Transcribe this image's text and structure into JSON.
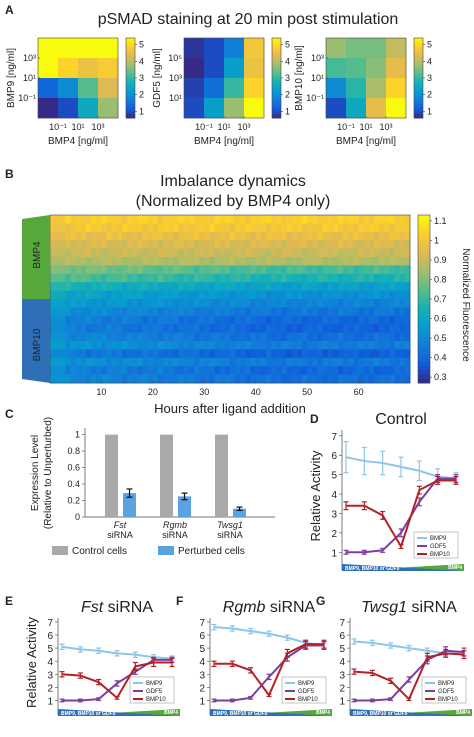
{
  "chart_data": [
    {
      "panel": "A",
      "type": "heatmap",
      "title": "pSMAD staining at 20 min post stimulation",
      "colorbar_ticks": [
        1,
        2,
        3,
        4,
        5
      ],
      "subplots": [
        {
          "ylabel": "BMP9 [ng/ml]",
          "xlabel": "BMP4 [ng/ml]",
          "xticks": [
            "10⁻¹",
            "10¹",
            "10³"
          ],
          "yticks": [
            "10³",
            "10¹",
            "10⁻¹"
          ],
          "values": [
            [
              5,
              5,
              5,
              5
            ],
            [
              5,
              4.6,
              4.3,
              4.5
            ],
            [
              1.6,
              2.1,
              3.2,
              4.1
            ],
            [
              1.0,
              1.3,
              2.6,
              3.6
            ]
          ]
        },
        {
          "ylabel": "GDF5 [ng/ml]",
          "xlabel": "BMP4 [ng/ml]",
          "xticks": [
            "10⁻¹",
            "10¹",
            "10³"
          ],
          "yticks": [
            "10⁵",
            "10³",
            "10¹"
          ],
          "values": [
            [
              1.1,
              1.3,
              1.9,
              4.4
            ],
            [
              1.0,
              1.3,
              2.4,
              4.3
            ],
            [
              1.2,
              1.7,
              3.0,
              4.6
            ],
            [
              1.3,
              2.4,
              3.6,
              5.0
            ]
          ]
        },
        {
          "ylabel": "BMP10 [ng/ml]",
          "xlabel": "BMP4 [ng/ml]",
          "xticks": [
            "10⁻¹",
            "10¹",
            "10³"
          ],
          "yticks": [
            "10³",
            "10¹",
            "10⁻¹"
          ],
          "values": [
            [
              3.6,
              3.4,
              3.4,
              3.9
            ],
            [
              3.1,
              3.2,
              3.5,
              4.2
            ],
            [
              2.1,
              2.9,
              3.7,
              4.6
            ],
            [
              1.3,
              2.6,
              4.2,
              5.0
            ]
          ]
        }
      ]
    },
    {
      "panel": "B",
      "type": "heatmap",
      "title_line1": "Imbalance dynamics",
      "title_line2": "(Normalized by BMP4 only)",
      "xlabel": "Hours after ligand addition",
      "xticks": [
        10,
        20,
        30,
        40,
        50,
        60
      ],
      "xlim": [
        0,
        70
      ],
      "side_label_top": "BMP4",
      "side_label_bottom": "BMP10",
      "colorbar_label": "Normalized Fluorescence",
      "colorbar_ticks": [
        1.1,
        1,
        0.9,
        0.8,
        0.7,
        0.6,
        0.5,
        0.4,
        0.3
      ],
      "colorbar_range": [
        0.27,
        1.13
      ],
      "row_levels": [
        1.03,
        1.01,
        0.97,
        0.93,
        0.9,
        0.86,
        0.8,
        0.74,
        0.66,
        0.6,
        0.56,
        0.52,
        0.48,
        0.47,
        0.5,
        0.54,
        0.46,
        0.53,
        0.48,
        0.5
      ]
    },
    {
      "panel": "C",
      "type": "bar",
      "ylabel_line1": "Expression Level",
      "ylabel_line2": "(Relative to Unperturbed)",
      "categories": [
        {
          "gene": "Fst",
          "suffix": "siRNA"
        },
        {
          "gene": "Rgmb",
          "suffix": "siRNA"
        },
        {
          "gene": "Twsg1",
          "suffix": "siRNA"
        }
      ],
      "series": [
        {
          "name": "Control cells",
          "color": "#a9a9a9",
          "values": [
            1,
            1,
            1
          ]
        },
        {
          "name": "Perturbed cells",
          "color": "#5aa2e0",
          "values": [
            0.29,
            0.25,
            0.1
          ],
          "errors": [
            0.05,
            0.04,
            0.02
          ]
        }
      ],
      "yticks": [
        0,
        0.2,
        0.4,
        0.6,
        0.8,
        1
      ],
      "ylim": [
        0,
        1.08
      ]
    },
    {
      "type": "line",
      "panels": [
        {
          "panel": "D",
          "title": "Control",
          "title_italic": "",
          "ylabel": "Relative Activity",
          "series": [
            {
              "name": "BMP9",
              "color": "#8ec5ea",
              "values": [
                5.9,
                5.7,
                5.6,
                5.4,
                5.2,
                4.9,
                4.8
              ],
              "errors": [
                0.8,
                0.7,
                0.6,
                0.5,
                0.5,
                0.4,
                0.3
              ]
            },
            {
              "name": "GDF5",
              "color": "#7b3f9e",
              "values": [
                1.0,
                1.0,
                1.1,
                2.0,
                3.6,
                4.8,
                4.8
              ],
              "errors": [
                0.1,
                0.1,
                0.1,
                0.2,
                0.2,
                0.2,
                0.2
              ]
            },
            {
              "name": "BMP10",
              "color": "#b52025",
              "values": [
                3.4,
                3.4,
                2.9,
                1.3,
                4.2,
                4.7,
                4.7
              ],
              "errors": [
                0.2,
                0.2,
                0.2,
                0.1,
                0.2,
                0.2,
                0.2
              ]
            }
          ]
        },
        {
          "panel": "E",
          "title": "siRNA",
          "title_italic": "Fst",
          "ylabel": "Relative Activity",
          "series": [
            {
              "name": "BMP9",
              "color": "#8ec5ea",
              "values": [
                5.1,
                4.9,
                4.8,
                4.6,
                4.5,
                4.3,
                4.2
              ],
              "errors": [
                0.2,
                0.2,
                0.2,
                0.2,
                0.2,
                0.2,
                0.2
              ]
            },
            {
              "name": "GDF5",
              "color": "#7b3f9e",
              "values": [
                1.0,
                1.0,
                1.1,
                2.3,
                3.2,
                4.1,
                4.1
              ],
              "errors": [
                0.1,
                0.1,
                0.1,
                0.2,
                0.2,
                0.2,
                0.2
              ]
            },
            {
              "name": "BMP10",
              "color": "#b52025",
              "values": [
                3.0,
                2.9,
                2.4,
                1.2,
                3.6,
                3.9,
                3.9
              ],
              "errors": [
                0.2,
                0.2,
                0.2,
                0.1,
                0.3,
                0.3,
                0.3
              ]
            }
          ]
        },
        {
          "panel": "F",
          "title": "siRNA",
          "title_italic": "Rgmb",
          "ylabel": "",
          "series": [
            {
              "name": "BMP9",
              "color": "#8ec5ea",
              "values": [
                6.6,
                6.5,
                6.3,
                6.1,
                5.8,
                5.4,
                5.2
              ],
              "errors": [
                0.2,
                0.2,
                0.2,
                0.2,
                0.2,
                0.2,
                0.2
              ]
            },
            {
              "name": "GDF5",
              "color": "#7b3f9e",
              "values": [
                1.0,
                1.0,
                1.2,
                2.8,
                4.3,
                5.2,
                5.2
              ],
              "errors": [
                0.1,
                0.1,
                0.1,
                0.2,
                0.3,
                0.3,
                0.3
              ]
            },
            {
              "name": "BMP10",
              "color": "#b52025",
              "values": [
                3.8,
                3.8,
                3.3,
                1.4,
                4.6,
                5.3,
                5.3
              ],
              "errors": [
                0.2,
                0.2,
                0.2,
                0.1,
                0.3,
                0.3,
                0.3
              ]
            }
          ]
        },
        {
          "panel": "G",
          "title": "siRNA",
          "title_italic": "Twsg1",
          "ylabel": "",
          "series": [
            {
              "name": "BMP9",
              "color": "#8ec5ea",
              "values": [
                5.5,
                5.4,
                5.2,
                5.0,
                4.8,
                4.6,
                4.6
              ],
              "errors": [
                0.2,
                0.2,
                0.2,
                0.2,
                0.2,
                0.2,
                0.2
              ]
            },
            {
              "name": "GDF5",
              "color": "#7b3f9e",
              "values": [
                1.0,
                1.0,
                1.1,
                2.6,
                4.1,
                4.8,
                4.7
              ],
              "errors": [
                0.1,
                0.1,
                0.1,
                0.2,
                0.3,
                0.3,
                0.3
              ]
            },
            {
              "name": "BMP10",
              "color": "#b52025",
              "values": [
                3.2,
                3.1,
                2.5,
                1.1,
                4.3,
                4.6,
                4.5
              ],
              "errors": [
                0.2,
                0.2,
                0.2,
                0.1,
                0.3,
                0.3,
                0.3
              ]
            }
          ]
        }
      ],
      "yticks": [
        1,
        2,
        3,
        4,
        5,
        6,
        7
      ],
      "ylim": [
        0.5,
        7.3
      ],
      "gradient_label_left": "BMP9, BMP10 or GDF5",
      "gradient_label_right": "BMP4"
    }
  ]
}
